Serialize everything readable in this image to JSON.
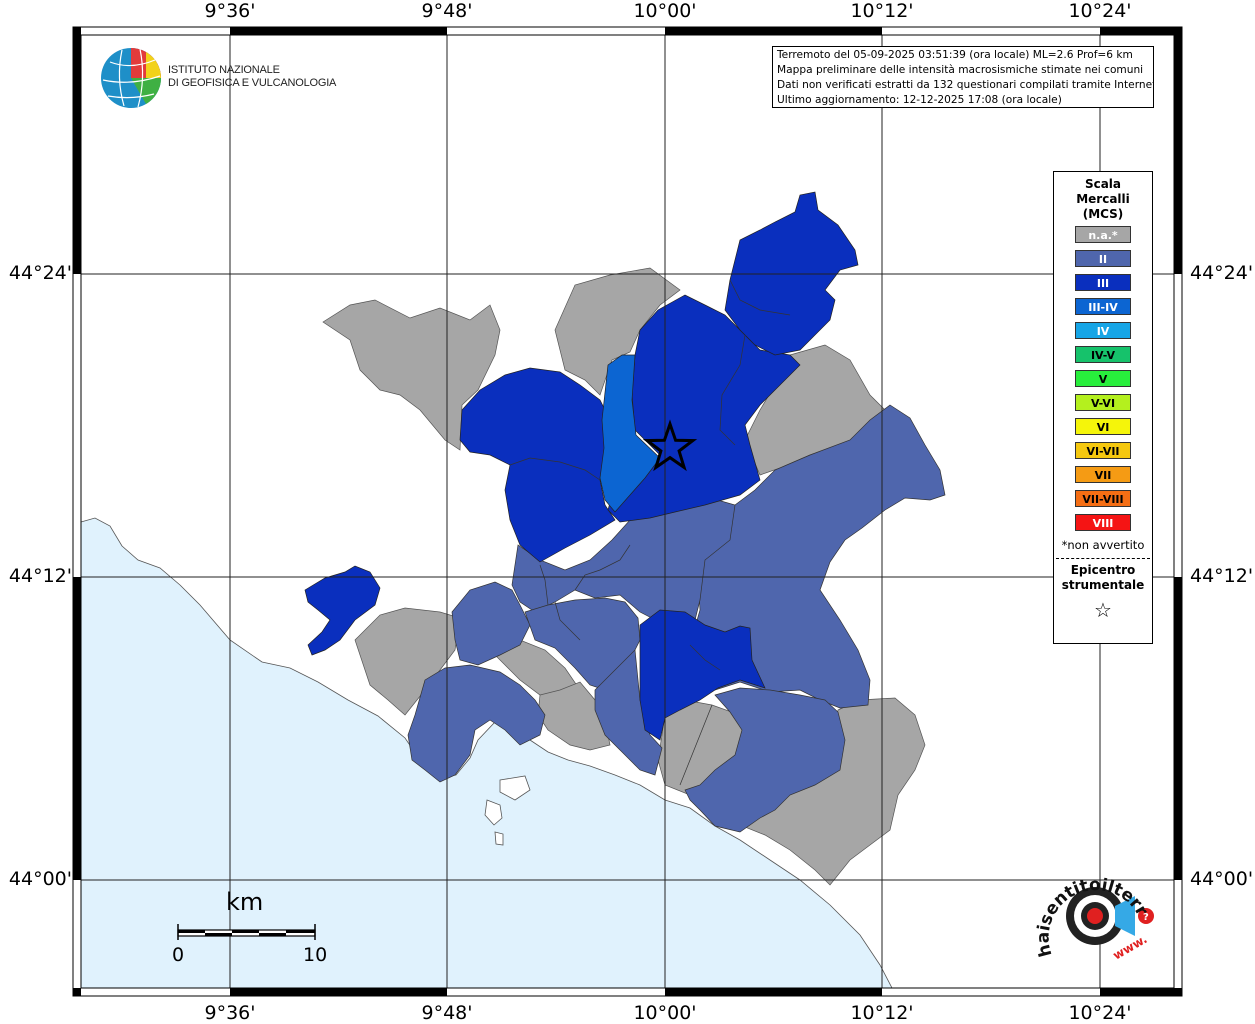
{
  "map": {
    "lat_labels": [
      "44°24'",
      "44°12'",
      "44°00'"
    ],
    "lon_labels": [
      "9°36'",
      "9°48'",
      "10°00'",
      "10°12'",
      "10°24'"
    ]
  },
  "info": {
    "line1": "Terremoto del 05-09-2025 03:51:39 (ora locale) ML=2.6 Prof=6 km",
    "line2": "Mappa preliminare delle intensità macrosismiche stimate nei comuni",
    "line3": "Dati non verificati estratti da 132 questionari compilati tramite Internet.",
    "line4": "Ultimo aggiornamento: 12-12-2025 17:08 (ora locale)"
  },
  "logo": {
    "line1": "ISTITUTO NAZIONALE",
    "line2": "DI GEOFISICA E VULCANOLOGIA"
  },
  "legend": {
    "title1": "Scala",
    "title2": "Mercalli",
    "title3": "(MCS)",
    "items": [
      {
        "label": "n.a.*",
        "color": "#a6a6a6",
        "text_color": "#ffffff"
      },
      {
        "label": "II",
        "color": "#4f66ad",
        "text_color": "#ffffff"
      },
      {
        "label": "III",
        "color": "#0a2fbe",
        "text_color": "#ffffff"
      },
      {
        "label": "III-IV",
        "color": "#0c65d2",
        "text_color": "#ffffff"
      },
      {
        "label": "IV",
        "color": "#16a5e6",
        "text_color": "#ffffff"
      },
      {
        "label": "IV-V",
        "color": "#16c26b",
        "text_color": "#000000"
      },
      {
        "label": "V",
        "color": "#28ee3c",
        "text_color": "#000000"
      },
      {
        "label": "V-VI",
        "color": "#b4f01e",
        "text_color": "#000000"
      },
      {
        "label": "VI",
        "color": "#f5f50a",
        "text_color": "#000000"
      },
      {
        "label": "VI-VII",
        "color": "#f5c80f",
        "text_color": "#000000"
      },
      {
        "label": "VII",
        "color": "#f59b14",
        "text_color": "#000000"
      },
      {
        "label": "VII-VIII",
        "color": "#f56e14",
        "text_color": "#000000"
      },
      {
        "label": "VIII",
        "color": "#f51414",
        "text_color": "#ffffff"
      }
    ],
    "note": "*non avvertito",
    "epi1": "Epicentro",
    "epi2": "strumentale",
    "epi_symbol": "☆"
  },
  "scale_bar": {
    "unit": "km",
    "min": "0",
    "max": "10"
  },
  "haisentito": {
    "text": "haisentitoilterremoto.it",
    "prefix": "www."
  },
  "colors": {
    "sea": "#e0f2fd",
    "na": "#a6a6a6",
    "ii": "#4f66ad",
    "iii": "#0a2fbe",
    "iii_iv": "#0c65d2"
  }
}
